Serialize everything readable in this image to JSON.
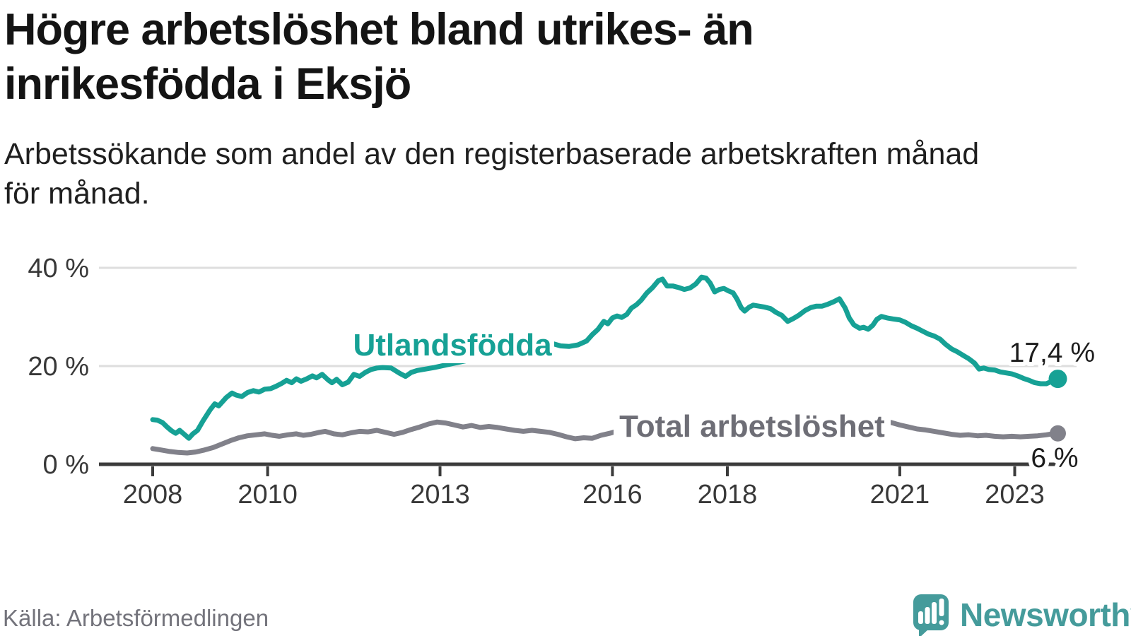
{
  "header": {
    "title_lines": [
      "Högre arbetslöshet bland utrikes- än",
      "inrikesfödda i Eksjö"
    ],
    "subtitle_lines": [
      "Arbetssökande som andel av den registerbaserade arbetskraften månad",
      "för månad."
    ]
  },
  "footer": {
    "source": "Källa: Arbetsförmedlingen",
    "brand": "Newsworthy"
  },
  "colors": {
    "foreign_born_line": "#16a195",
    "total_line": "#81818a",
    "total_label": "#6e6e76",
    "brand": "#459b9b",
    "axis": "#3b3b3b",
    "grid": "#dedede"
  },
  "chart_data": {
    "type": "line",
    "title": "Högre arbetslöshet bland utrikes- än inrikesfödda i Eksjö",
    "subtitle": "Arbetssökande som andel av den registerbaserade arbetskraften månad för månad.",
    "x_axis": {
      "range": [
        2007.05,
        2024.1
      ],
      "ticks": [
        2008,
        2010,
        2013,
        2016,
        2018,
        2021,
        2023
      ],
      "tick_labels": [
        "2008",
        "2010",
        "2013",
        "2016",
        "2018",
        "2021",
        "2023"
      ]
    },
    "y_axis": {
      "range": [
        0,
        42
      ],
      "ticks": [
        {
          "value": 40,
          "label": "40 %"
        },
        {
          "value": 20,
          "label": "20 %"
        },
        {
          "value": 0,
          "label": "0 %"
        }
      ],
      "grid": true
    },
    "legend_position": "inline-labels",
    "series": [
      {
        "name": "Utlandsfödda",
        "color": "#16a195",
        "end_label": "17,4 %",
        "end_value": 17.4,
        "points": [
          [
            2008.0,
            9.1
          ],
          [
            2008.08,
            9.0
          ],
          [
            2008.17,
            8.5
          ],
          [
            2008.25,
            7.6
          ],
          [
            2008.33,
            6.8
          ],
          [
            2008.4,
            6.3
          ],
          [
            2008.47,
            6.9
          ],
          [
            2008.55,
            6.1
          ],
          [
            2008.63,
            5.3
          ],
          [
            2008.7,
            6.2
          ],
          [
            2008.78,
            6.9
          ],
          [
            2008.88,
            8.9
          ],
          [
            2009.0,
            11.1
          ],
          [
            2009.08,
            12.3
          ],
          [
            2009.15,
            11.9
          ],
          [
            2009.28,
            13.6
          ],
          [
            2009.38,
            14.5
          ],
          [
            2009.45,
            14.1
          ],
          [
            2009.55,
            13.8
          ],
          [
            2009.65,
            14.6
          ],
          [
            2009.75,
            15.0
          ],
          [
            2009.85,
            14.7
          ],
          [
            2009.95,
            15.3
          ],
          [
            2010.05,
            15.4
          ],
          [
            2010.15,
            15.9
          ],
          [
            2010.25,
            16.5
          ],
          [
            2010.33,
            17.1
          ],
          [
            2010.42,
            16.6
          ],
          [
            2010.5,
            17.4
          ],
          [
            2010.58,
            16.9
          ],
          [
            2010.68,
            17.4
          ],
          [
            2010.78,
            18.0
          ],
          [
            2010.85,
            17.6
          ],
          [
            2010.95,
            18.3
          ],
          [
            2011.05,
            17.2
          ],
          [
            2011.12,
            16.6
          ],
          [
            2011.2,
            17.3
          ],
          [
            2011.3,
            16.2
          ],
          [
            2011.4,
            16.7
          ],
          [
            2011.5,
            18.3
          ],
          [
            2011.6,
            17.9
          ],
          [
            2011.7,
            18.7
          ],
          [
            2011.8,
            19.3
          ],
          [
            2011.9,
            19.6
          ],
          [
            2012.0,
            19.7
          ],
          [
            2012.15,
            19.6
          ],
          [
            2012.3,
            18.5
          ],
          [
            2012.4,
            17.9
          ],
          [
            2012.5,
            18.7
          ],
          [
            2012.6,
            19.1
          ],
          [
            2012.75,
            19.4
          ],
          [
            2012.9,
            19.7
          ],
          [
            2013.1,
            20.2
          ],
          [
            2013.3,
            20.7
          ],
          [
            2013.5,
            21.2
          ],
          [
            2013.7,
            21.8
          ],
          [
            2013.9,
            22.4
          ],
          [
            2014.1,
            23.0
          ],
          [
            2014.3,
            23.7
          ],
          [
            2014.5,
            24.4
          ],
          [
            2014.65,
            25.1
          ],
          [
            2014.8,
            25.9
          ],
          [
            2014.95,
            24.6
          ],
          [
            2015.1,
            24.1
          ],
          [
            2015.25,
            24.0
          ],
          [
            2015.4,
            24.3
          ],
          [
            2015.55,
            25.1
          ],
          [
            2015.65,
            26.4
          ],
          [
            2015.75,
            27.5
          ],
          [
            2015.85,
            29.1
          ],
          [
            2015.92,
            28.6
          ],
          [
            2016.0,
            29.8
          ],
          [
            2016.08,
            30.2
          ],
          [
            2016.16,
            29.9
          ],
          [
            2016.25,
            30.5
          ],
          [
            2016.33,
            31.8
          ],
          [
            2016.42,
            32.5
          ],
          [
            2016.5,
            33.4
          ],
          [
            2016.6,
            34.9
          ],
          [
            2016.7,
            36.0
          ],
          [
            2016.8,
            37.4
          ],
          [
            2016.87,
            37.7
          ],
          [
            2016.95,
            36.3
          ],
          [
            2017.05,
            36.3
          ],
          [
            2017.15,
            36.0
          ],
          [
            2017.25,
            35.6
          ],
          [
            2017.35,
            35.9
          ],
          [
            2017.45,
            36.7
          ],
          [
            2017.55,
            38.1
          ],
          [
            2017.63,
            37.9
          ],
          [
            2017.7,
            36.9
          ],
          [
            2017.78,
            35.1
          ],
          [
            2017.86,
            35.6
          ],
          [
            2017.94,
            35.8
          ],
          [
            2018.02,
            35.3
          ],
          [
            2018.1,
            34.9
          ],
          [
            2018.17,
            33.6
          ],
          [
            2018.24,
            31.9
          ],
          [
            2018.3,
            31.2
          ],
          [
            2018.38,
            32.0
          ],
          [
            2018.45,
            32.4
          ],
          [
            2018.55,
            32.2
          ],
          [
            2018.65,
            32.0
          ],
          [
            2018.75,
            31.7
          ],
          [
            2018.85,
            30.9
          ],
          [
            2018.95,
            30.3
          ],
          [
            2019.05,
            29.1
          ],
          [
            2019.15,
            29.7
          ],
          [
            2019.25,
            30.4
          ],
          [
            2019.35,
            31.3
          ],
          [
            2019.45,
            31.9
          ],
          [
            2019.55,
            32.2
          ],
          [
            2019.65,
            32.2
          ],
          [
            2019.75,
            32.6
          ],
          [
            2019.85,
            33.1
          ],
          [
            2019.95,
            33.7
          ],
          [
            2020.05,
            31.8
          ],
          [
            2020.12,
            29.8
          ],
          [
            2020.2,
            28.4
          ],
          [
            2020.3,
            27.7
          ],
          [
            2020.37,
            27.9
          ],
          [
            2020.45,
            27.5
          ],
          [
            2020.53,
            28.3
          ],
          [
            2020.6,
            29.5
          ],
          [
            2020.68,
            30.1
          ],
          [
            2020.78,
            29.8
          ],
          [
            2020.88,
            29.6
          ],
          [
            2021.0,
            29.4
          ],
          [
            2021.1,
            28.9
          ],
          [
            2021.2,
            28.2
          ],
          [
            2021.3,
            27.7
          ],
          [
            2021.4,
            27.1
          ],
          [
            2021.5,
            26.5
          ],
          [
            2021.6,
            26.1
          ],
          [
            2021.7,
            25.5
          ],
          [
            2021.8,
            24.4
          ],
          [
            2021.9,
            23.5
          ],
          [
            2022.0,
            22.9
          ],
          [
            2022.1,
            22.2
          ],
          [
            2022.2,
            21.5
          ],
          [
            2022.3,
            20.6
          ],
          [
            2022.38,
            19.4
          ],
          [
            2022.46,
            19.6
          ],
          [
            2022.55,
            19.3
          ],
          [
            2022.65,
            19.2
          ],
          [
            2022.75,
            18.8
          ],
          [
            2022.85,
            18.6
          ],
          [
            2022.95,
            18.4
          ],
          [
            2023.05,
            18.0
          ],
          [
            2023.15,
            17.5
          ],
          [
            2023.25,
            17.1
          ],
          [
            2023.35,
            16.6
          ],
          [
            2023.45,
            16.4
          ],
          [
            2023.55,
            16.4
          ],
          [
            2023.63,
            16.8
          ],
          [
            2023.75,
            17.4
          ]
        ]
      },
      {
        "name": "Total arbetslöshet",
        "color": "#81818a",
        "end_label": "6 %",
        "end_value": 6.3,
        "points": [
          [
            2008.0,
            3.2
          ],
          [
            2008.15,
            2.9
          ],
          [
            2008.3,
            2.6
          ],
          [
            2008.45,
            2.4
          ],
          [
            2008.6,
            2.3
          ],
          [
            2008.75,
            2.5
          ],
          [
            2008.9,
            2.9
          ],
          [
            2009.05,
            3.4
          ],
          [
            2009.2,
            4.1
          ],
          [
            2009.35,
            4.8
          ],
          [
            2009.5,
            5.4
          ],
          [
            2009.65,
            5.8
          ],
          [
            2009.8,
            6.0
          ],
          [
            2009.95,
            6.2
          ],
          [
            2010.08,
            5.9
          ],
          [
            2010.2,
            5.7
          ],
          [
            2010.35,
            6.0
          ],
          [
            2010.5,
            6.2
          ],
          [
            2010.62,
            5.9
          ],
          [
            2010.75,
            6.1
          ],
          [
            2010.9,
            6.5
          ],
          [
            2011.0,
            6.7
          ],
          [
            2011.15,
            6.2
          ],
          [
            2011.3,
            6.0
          ],
          [
            2011.45,
            6.4
          ],
          [
            2011.6,
            6.7
          ],
          [
            2011.75,
            6.6
          ],
          [
            2011.9,
            6.9
          ],
          [
            2012.05,
            6.5
          ],
          [
            2012.2,
            6.1
          ],
          [
            2012.35,
            6.5
          ],
          [
            2012.5,
            7.1
          ],
          [
            2012.65,
            7.6
          ],
          [
            2012.8,
            8.2
          ],
          [
            2012.95,
            8.6
          ],
          [
            2013.1,
            8.4
          ],
          [
            2013.25,
            8.0
          ],
          [
            2013.4,
            7.6
          ],
          [
            2013.55,
            7.9
          ],
          [
            2013.7,
            7.5
          ],
          [
            2013.85,
            7.7
          ],
          [
            2014.0,
            7.5
          ],
          [
            2014.15,
            7.2
          ],
          [
            2014.3,
            6.9
          ],
          [
            2014.45,
            6.7
          ],
          [
            2014.6,
            6.9
          ],
          [
            2014.75,
            6.7
          ],
          [
            2014.9,
            6.5
          ],
          [
            2015.05,
            6.1
          ],
          [
            2015.2,
            5.6
          ],
          [
            2015.35,
            5.2
          ],
          [
            2015.5,
            5.4
          ],
          [
            2015.65,
            5.3
          ],
          [
            2015.8,
            5.9
          ],
          [
            2015.95,
            6.3
          ],
          [
            2016.1,
            6.8
          ],
          [
            2016.3,
            6.7
          ],
          [
            2016.5,
            6.6
          ],
          [
            2016.7,
            6.8
          ],
          [
            2016.9,
            6.9
          ],
          [
            2017.1,
            7.0
          ],
          [
            2017.3,
            7.1
          ],
          [
            2017.5,
            7.0
          ],
          [
            2017.7,
            7.2
          ],
          [
            2017.9,
            7.1
          ],
          [
            2018.1,
            7.3
          ],
          [
            2018.3,
            7.1
          ],
          [
            2018.5,
            7.0
          ],
          [
            2018.7,
            7.2
          ],
          [
            2018.9,
            7.1
          ],
          [
            2019.1,
            7.2
          ],
          [
            2019.3,
            7.4
          ],
          [
            2019.5,
            7.3
          ],
          [
            2019.7,
            7.4
          ],
          [
            2019.9,
            7.5
          ],
          [
            2020.1,
            7.9
          ],
          [
            2020.3,
            8.3
          ],
          [
            2020.5,
            8.5
          ],
          [
            2020.7,
            8.6
          ],
          [
            2020.85,
            8.5
          ],
          [
            2021.0,
            8.0
          ],
          [
            2021.15,
            7.6
          ],
          [
            2021.3,
            7.2
          ],
          [
            2021.45,
            7.0
          ],
          [
            2021.6,
            6.7
          ],
          [
            2021.75,
            6.4
          ],
          [
            2021.9,
            6.1
          ],
          [
            2022.05,
            5.9
          ],
          [
            2022.2,
            6.0
          ],
          [
            2022.35,
            5.8
          ],
          [
            2022.5,
            5.9
          ],
          [
            2022.65,
            5.7
          ],
          [
            2022.8,
            5.6
          ],
          [
            2022.95,
            5.7
          ],
          [
            2023.1,
            5.6
          ],
          [
            2023.25,
            5.7
          ],
          [
            2023.4,
            5.8
          ],
          [
            2023.55,
            6.0
          ],
          [
            2023.65,
            6.2
          ],
          [
            2023.75,
            6.3
          ]
        ]
      }
    ]
  }
}
